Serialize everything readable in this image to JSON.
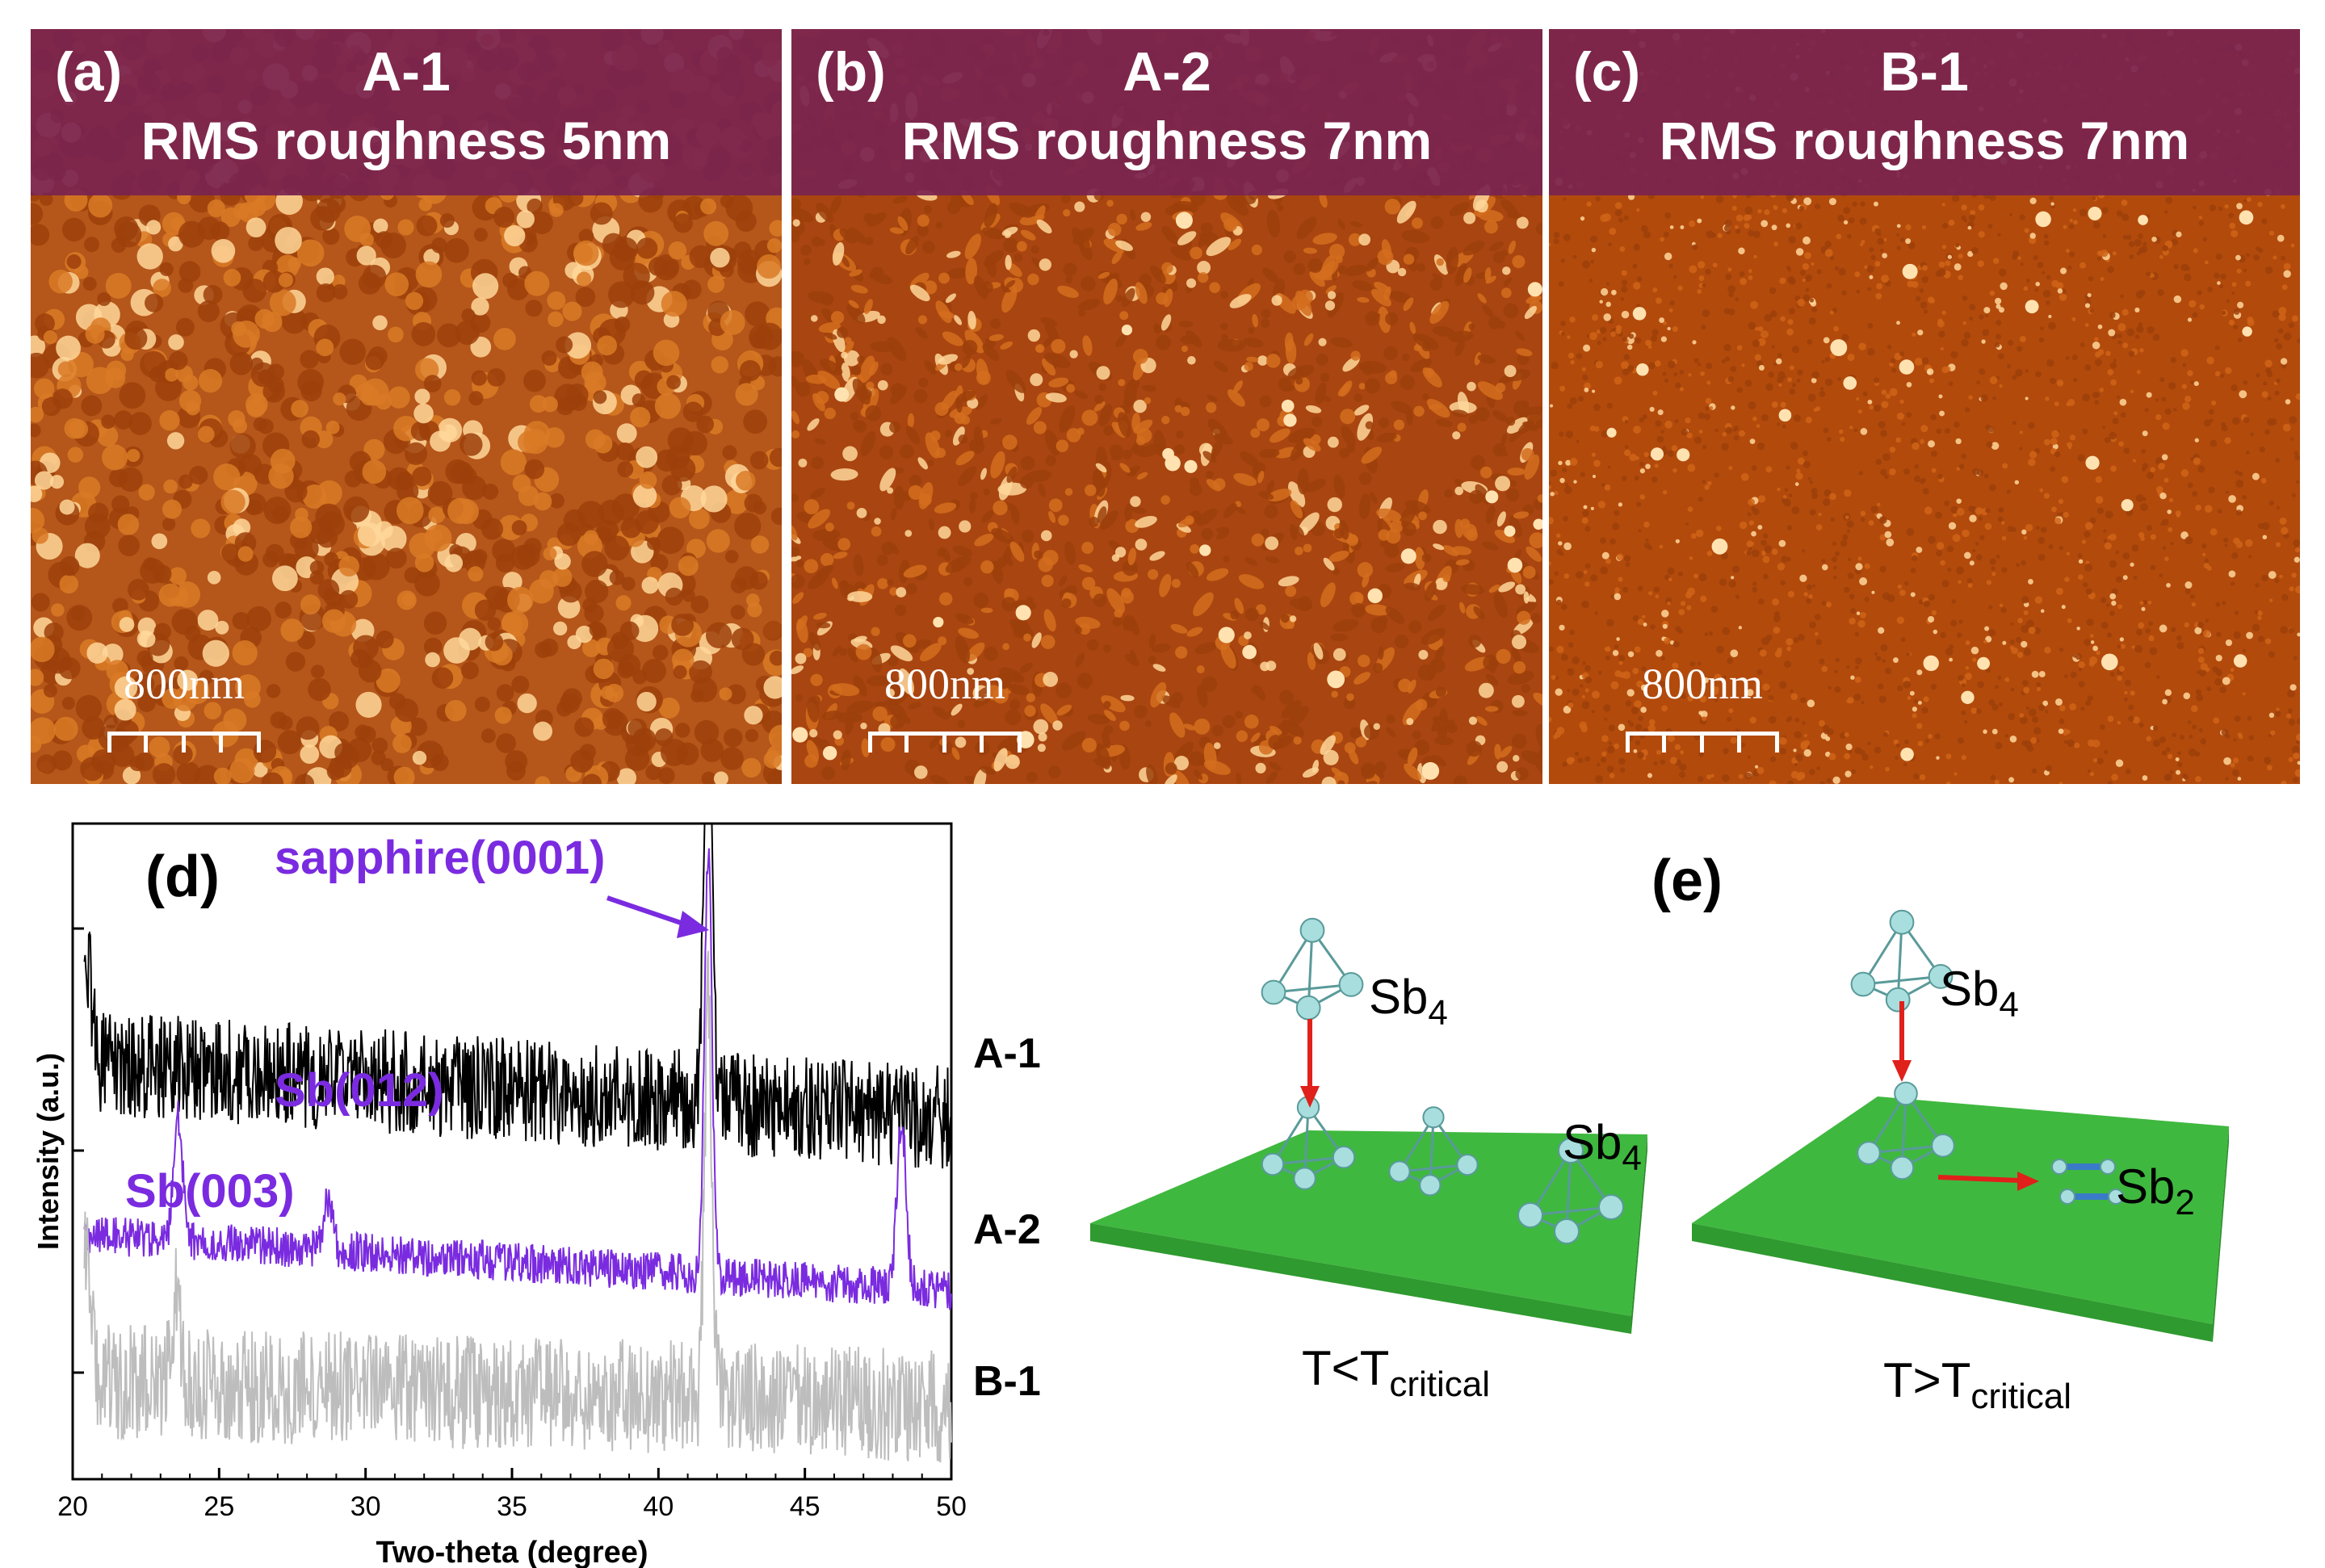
{
  "panels": [
    {
      "label": "(a)",
      "sample": "A-1",
      "rms": "RMS roughness 5nm",
      "scale": "800nm",
      "tex_color": "#d97a26",
      "bg_color": "#b5561a"
    },
    {
      "label": "(b)",
      "sample": "A-2",
      "rms": "RMS roughness 7nm",
      "scale": "800nm",
      "tex_color": "#d46d1d",
      "bg_color": "#a94510"
    },
    {
      "label": "(c)",
      "sample": "B-1",
      "rms": "RMS roughness 7nm",
      "scale": "800nm",
      "tex_color": "#cf6418",
      "bg_color": "#b24a0c"
    }
  ],
  "xrd": {
    "panel_label": "(d)",
    "xlabel": "Two-theta (degree)",
    "ylabel": "Intensity (a.u.)",
    "annotations": {
      "sapphire": "sapphire(0001)",
      "sb012": "Sb(012)",
      "sb003": "Sb(003)"
    },
    "annotation_color": "#7a2be0"
  },
  "chart_data": {
    "type": "line",
    "title": "",
    "xlabel": "Two-theta (degree)",
    "ylabel": "Intensity (a.u.)",
    "xlim": [
      20,
      50
    ],
    "xticks": [
      20,
      25,
      30,
      35,
      40,
      45,
      50
    ],
    "yscale": "log",
    "series": [
      {
        "name": "A-1",
        "color": "#000000",
        "peaks": [
          {
            "x": 20.5,
            "h": 0.6
          },
          {
            "x": 41.7,
            "h": 3.4
          }
        ],
        "base_start": 2.55,
        "base_end": 2.2,
        "noise": 0.32
      },
      {
        "name": "A-2",
        "color": "#7a2be0",
        "peaks": [
          {
            "x": 23.6,
            "h": 0.75
          },
          {
            "x": 28.7,
            "h": 0.3
          },
          {
            "x": 41.7,
            "h": 2.6
          },
          {
            "x": 48.3,
            "h": 1.0
          }
        ],
        "base_start": 1.5,
        "base_end": 1.15,
        "noise": 0.12
      },
      {
        "name": "B-1",
        "color": "#bdbdbd",
        "peaks": [
          {
            "x": 20.5,
            "h": 0.8
          },
          {
            "x": 23.5,
            "h": 0.5
          },
          {
            "x": 41.7,
            "h": 2.4
          }
        ],
        "base_start": 0.6,
        "base_end": 0.45,
        "noise": 0.35
      }
    ],
    "annotations": [
      "sapphire(0001)",
      "Sb(012)",
      "Sb(003)"
    ]
  },
  "schematic": {
    "panel_label": "(e)",
    "left": {
      "molecule_top": "Sb",
      "sub_top": "4",
      "molecule_side": "Sb",
      "sub_side": "4",
      "cond_prefix": "T<T",
      "cond_sub": "critical"
    },
    "right": {
      "molecule_top": "Sb",
      "sub_top": "4",
      "molecule_side": "Sb",
      "sub_side": "2",
      "cond_prefix": "T>T",
      "cond_sub": "critical"
    },
    "substrate_color": "#3fb83f",
    "arrow_color": "#e0201a"
  }
}
